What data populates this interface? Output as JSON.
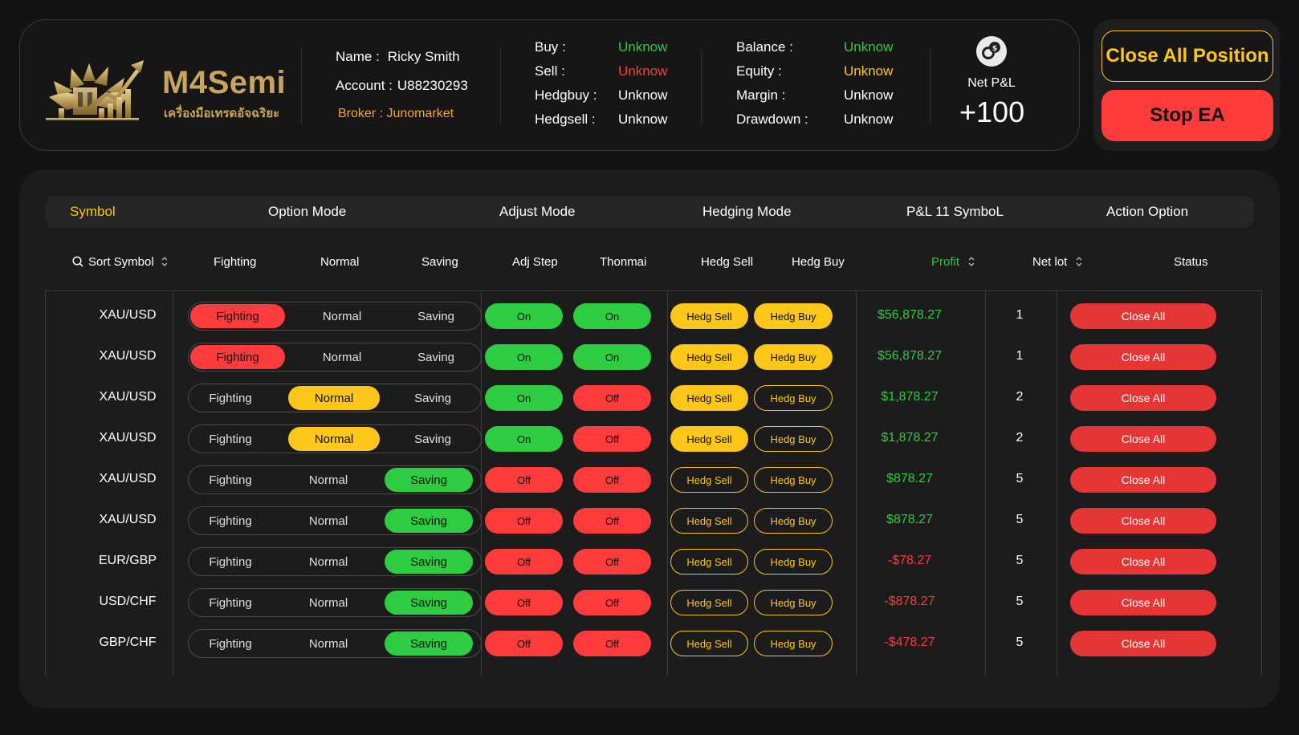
{
  "colors": {
    "accent_yellow": "#ffc61a",
    "green": "#2ecc40",
    "red": "#ff3b3b",
    "broker": "#f6a623",
    "gold": "#c9a45c"
  },
  "brand": {
    "name": "M4Semi",
    "tagline": "เครื่องมือเทรดอัจฉริยะ"
  },
  "account": {
    "name_label": "Name :",
    "name": "Ricky Smith",
    "account_label": "Account :",
    "account": "U88230293",
    "broker": "Broker : Junomarket"
  },
  "positions": {
    "buy_label": "Buy :",
    "buy": "Unknow",
    "sell_label": "Sell :",
    "sell": "Unknow",
    "hedgbuy_label": "Hedgbuy :",
    "hedgbuy": "Unknow",
    "hedgsell_label": "Hedgsell :",
    "hedgsell": "Unknow"
  },
  "funds": {
    "balance_label": "Balance :",
    "balance": "Unknow",
    "equity_label": "Equity :",
    "equity": "Unknow",
    "margin_label": "Margin :",
    "margin": "Unknow",
    "drawdown_label": "Drawdown :",
    "drawdown": "Unknow"
  },
  "net_pl": {
    "label": "Net P&L",
    "value": "+100",
    "icon": "coins-icon"
  },
  "actions": {
    "close_all_position": "Close All Position",
    "stop_ea": "Stop EA"
  },
  "table_header": {
    "symbol": "Symbol",
    "option_mode": "Option Mode",
    "adjust_mode": "Adjust Mode",
    "hedging_mode": "Hedging Mode",
    "pl_symbol": "P&L 11 SymboL",
    "action_option": "Action Option"
  },
  "sub_header": {
    "sort_symbol": "Sort Symbol",
    "fighting": "Fighting",
    "normal": "Normal",
    "saving": "Saving",
    "adj_step": "Adj Step",
    "thonmai": "Thonmai",
    "hedg_sell": "Hedg Sell",
    "hedg_buy": "Hedg Buy",
    "profit": "Profit",
    "net_lot": "Net lot",
    "status": "Status"
  },
  "rows": [
    {
      "symbol": "XAU/USD",
      "mode": "Fighting",
      "adj_step": "On",
      "thonmai": "On",
      "hedg_sell_active": true,
      "hedg_buy_active": true,
      "profit": "$56,878.27",
      "profit_sign": "pos",
      "net_lot": "1"
    },
    {
      "symbol": "XAU/USD",
      "mode": "Fighting",
      "adj_step": "On",
      "thonmai": "On",
      "hedg_sell_active": true,
      "hedg_buy_active": true,
      "profit": "$56,878.27",
      "profit_sign": "pos",
      "net_lot": "1"
    },
    {
      "symbol": "XAU/USD",
      "mode": "Normal",
      "adj_step": "On",
      "thonmai": "Off",
      "hedg_sell_active": true,
      "hedg_buy_active": false,
      "profit": "$1,878.27",
      "profit_sign": "pos",
      "net_lot": "2"
    },
    {
      "symbol": "XAU/USD",
      "mode": "Normal",
      "adj_step": "On",
      "thonmai": "Off",
      "hedg_sell_active": true,
      "hedg_buy_active": false,
      "profit": "$1,878.27",
      "profit_sign": "pos",
      "net_lot": "2"
    },
    {
      "symbol": "XAU/USD",
      "mode": "Saving",
      "adj_step": "Off",
      "thonmai": "Off",
      "hedg_sell_active": false,
      "hedg_buy_active": false,
      "profit": "$878.27",
      "profit_sign": "pos",
      "net_lot": "5"
    },
    {
      "symbol": "XAU/USD",
      "mode": "Saving",
      "adj_step": "Off",
      "thonmai": "Off",
      "hedg_sell_active": false,
      "hedg_buy_active": false,
      "profit": "$878.27",
      "profit_sign": "pos",
      "net_lot": "5"
    },
    {
      "symbol": "EUR/GBP",
      "mode": "Saving",
      "adj_step": "Off",
      "thonmai": "Off",
      "hedg_sell_active": false,
      "hedg_buy_active": false,
      "profit": "-$78.27",
      "profit_sign": "neg",
      "net_lot": "5"
    },
    {
      "symbol": "USD/CHF",
      "mode": "Saving",
      "adj_step": "Off",
      "thonmai": "Off",
      "hedg_sell_active": false,
      "hedg_buy_active": false,
      "profit": "-$878.27",
      "profit_sign": "neg",
      "net_lot": "5"
    },
    {
      "symbol": "GBP/CHF",
      "mode": "Saving",
      "adj_step": "Off",
      "thonmai": "Off",
      "hedg_sell_active": false,
      "hedg_buy_active": false,
      "profit": "-$478.27",
      "profit_sign": "neg",
      "net_lot": "5"
    }
  ],
  "row_labels": {
    "fighting": "Fighting",
    "normal": "Normal",
    "saving": "Saving",
    "hedg_sell": "Hedg Sell",
    "hedg_buy": "Hedg Buy",
    "close_all": "Close All"
  }
}
